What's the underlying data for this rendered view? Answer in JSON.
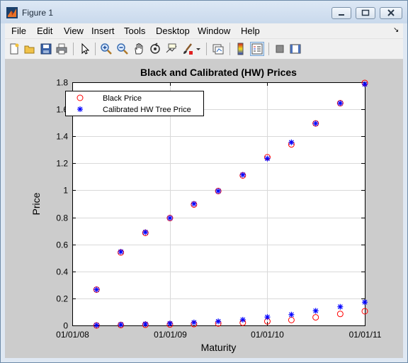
{
  "window": {
    "title": "Figure 1"
  },
  "menu": {
    "items": [
      "File",
      "Edit",
      "View",
      "Insert",
      "Tools",
      "Desktop",
      "Window",
      "Help"
    ]
  },
  "toolbar": {
    "icons": [
      "new-figure-icon",
      "open-file-icon",
      "save-icon",
      "print-icon",
      "edit-plot-pointer-icon",
      "zoom-in-icon",
      "zoom-out-icon",
      "pan-hand-icon",
      "rotate-3d-icon",
      "data-cursor-icon",
      "brush-icon",
      "link-plot-icon",
      "insert-colorbar-icon",
      "insert-legend-icon",
      "hide-plot-tools-icon",
      "show-plot-tools-icon"
    ]
  },
  "chart_data": {
    "type": "scatter",
    "title": "Black and Calibrated (HW) Prices",
    "xlabel": "Maturity",
    "ylabel": "Price",
    "x_ticks": [
      "01/01/08",
      "01/01/09",
      "01/01/10",
      "01/01/11"
    ],
    "y_ticks": [
      "0",
      "0.2",
      "0.4",
      "0.6",
      "0.8",
      "1",
      "1.2",
      "1.4",
      "1.6",
      "1.8"
    ],
    "xlim": [
      "01/01/08",
      "01/01/11"
    ],
    "ylim": [
      0,
      1.8
    ],
    "grid": true,
    "legend_position": "top-left",
    "x": [
      "04/01/08",
      "07/01/08",
      "10/01/08",
      "01/01/09",
      "04/01/09",
      "07/01/09",
      "10/01/09",
      "01/01/10",
      "04/01/10",
      "07/01/10",
      "10/01/10",
      "01/01/11"
    ],
    "series": [
      {
        "name": "Black Price",
        "marker": "circle",
        "color": "#ff0000",
        "upper": [
          0.265,
          0.54,
          0.685,
          0.795,
          0.895,
          0.995,
          1.11,
          1.245,
          1.34,
          1.495,
          1.645,
          1.795
        ],
        "lower": [
          0.0,
          0.003,
          0.005,
          0.007,
          0.01,
          0.015,
          0.02,
          0.03,
          0.04,
          0.06,
          0.085,
          0.105
        ]
      },
      {
        "name": "Calibrated HW Tree Price",
        "marker": "asterisk",
        "color": "#0000ff",
        "upper": [
          0.265,
          0.545,
          0.69,
          0.795,
          0.9,
          0.995,
          1.115,
          1.235,
          1.355,
          1.495,
          1.645,
          1.785
        ],
        "lower": [
          0.002,
          0.006,
          0.01,
          0.015,
          0.022,
          0.03,
          0.042,
          0.062,
          0.08,
          0.108,
          0.138,
          0.172
        ]
      }
    ]
  }
}
